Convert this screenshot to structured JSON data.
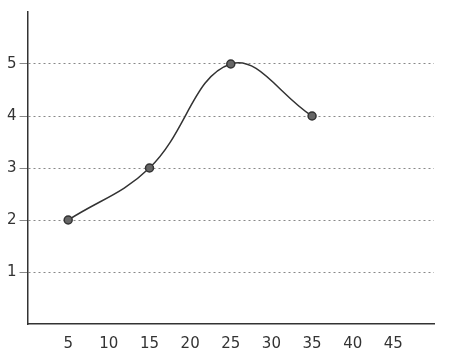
{
  "chart_data": {
    "type": "line",
    "x": [
      5,
      15,
      25,
      35
    ],
    "values": [
      2,
      3,
      5,
      4
    ],
    "color": "#333333",
    "xlim": [
      0,
      50
    ],
    "xticks": [
      5,
      10,
      15,
      20,
      25,
      30,
      35,
      40,
      45
    ],
    "ylim": [
      0,
      6
    ],
    "yticks": [
      1,
      2,
      3,
      4,
      5
    ],
    "grid": true,
    "marker": "circle"
  }
}
